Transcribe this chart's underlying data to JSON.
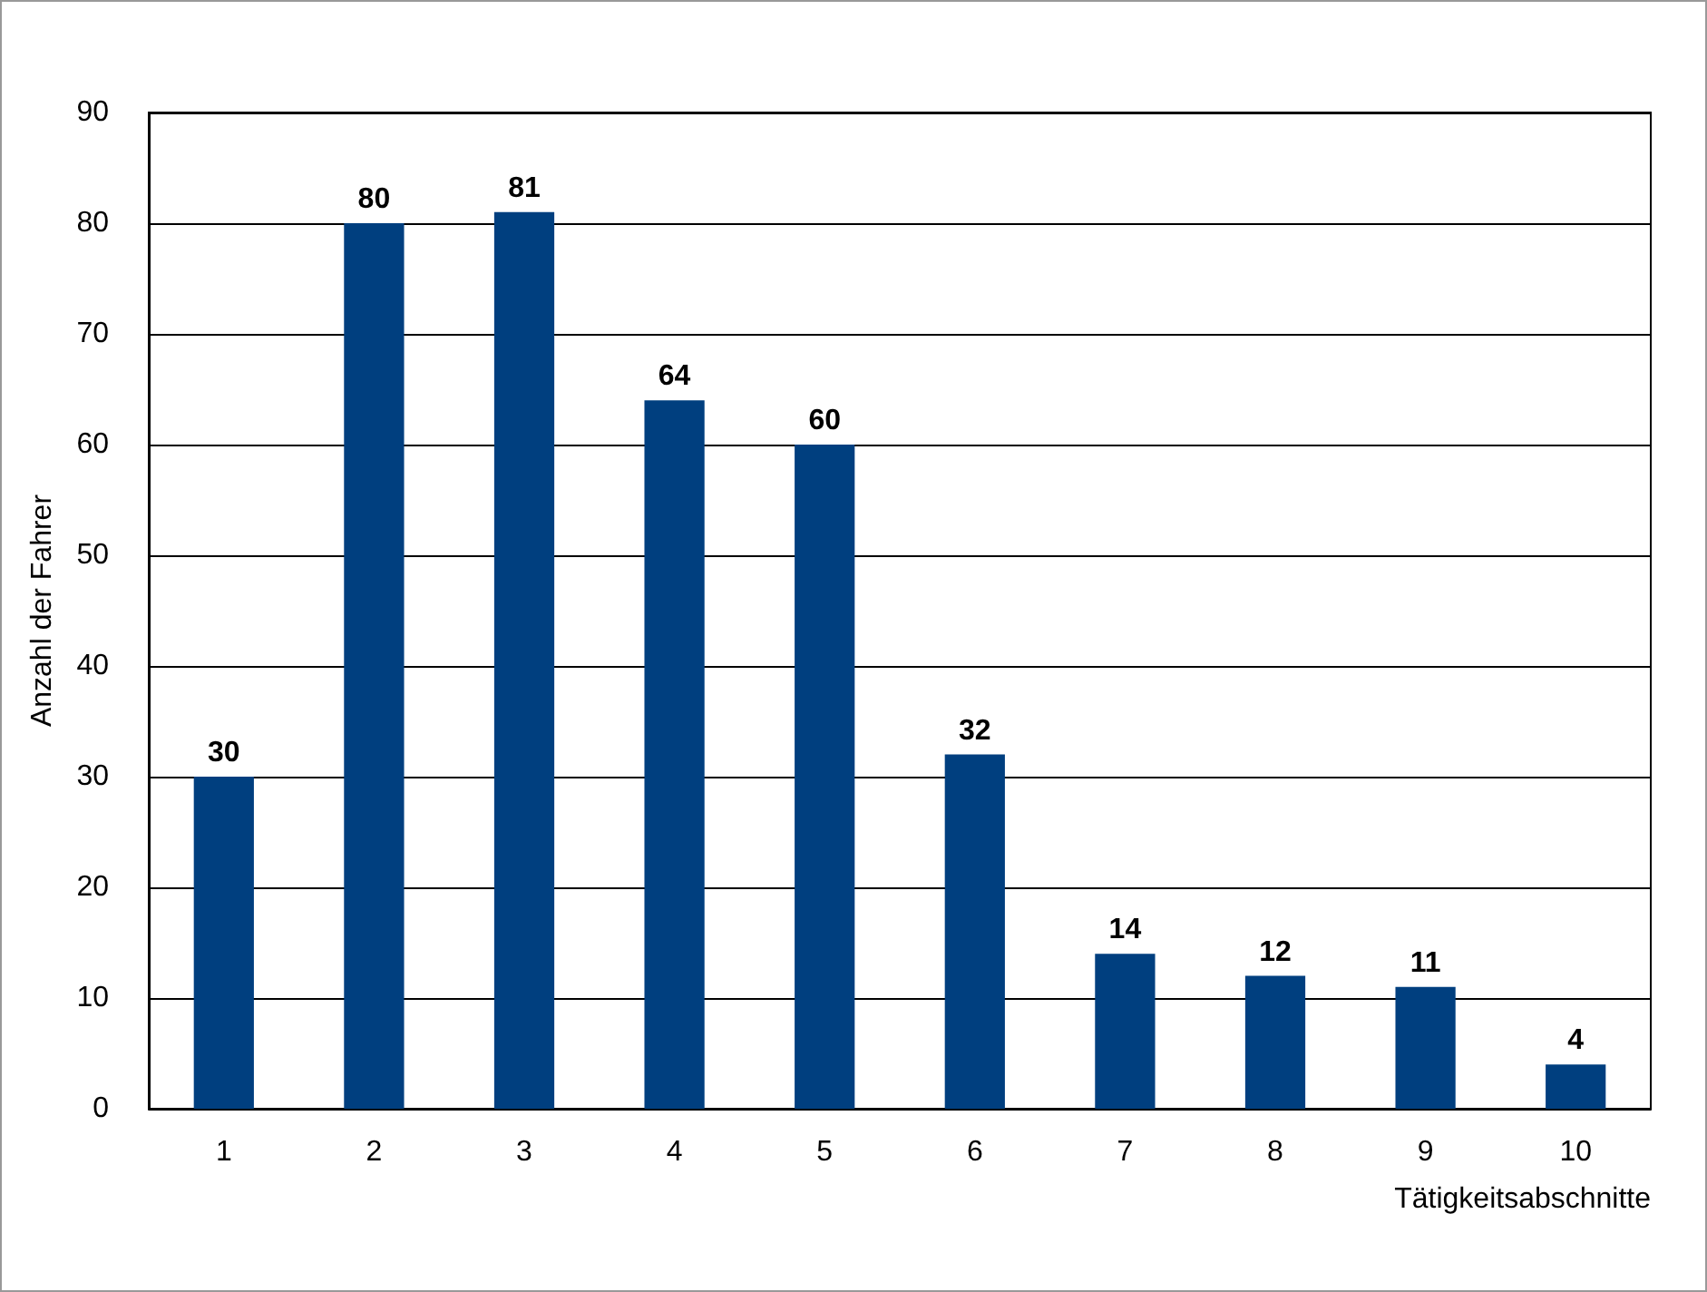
{
  "chart_data": {
    "type": "bar",
    "xlabel": "Tätigkeitsabschnitte",
    "ylabel": "Anzahl der Fahrer",
    "categories": [
      "1",
      "2",
      "3",
      "4",
      "5",
      "6",
      "7",
      "8",
      "9",
      "10"
    ],
    "values": [
      30,
      80,
      81,
      64,
      60,
      32,
      14,
      12,
      11,
      4
    ],
    "color": "#003f7f",
    "ylim": [
      0,
      90
    ],
    "yticks": [
      0,
      10,
      20,
      30,
      40,
      50,
      60,
      70,
      80,
      90
    ],
    "grid": "y",
    "data_labels": true
  }
}
